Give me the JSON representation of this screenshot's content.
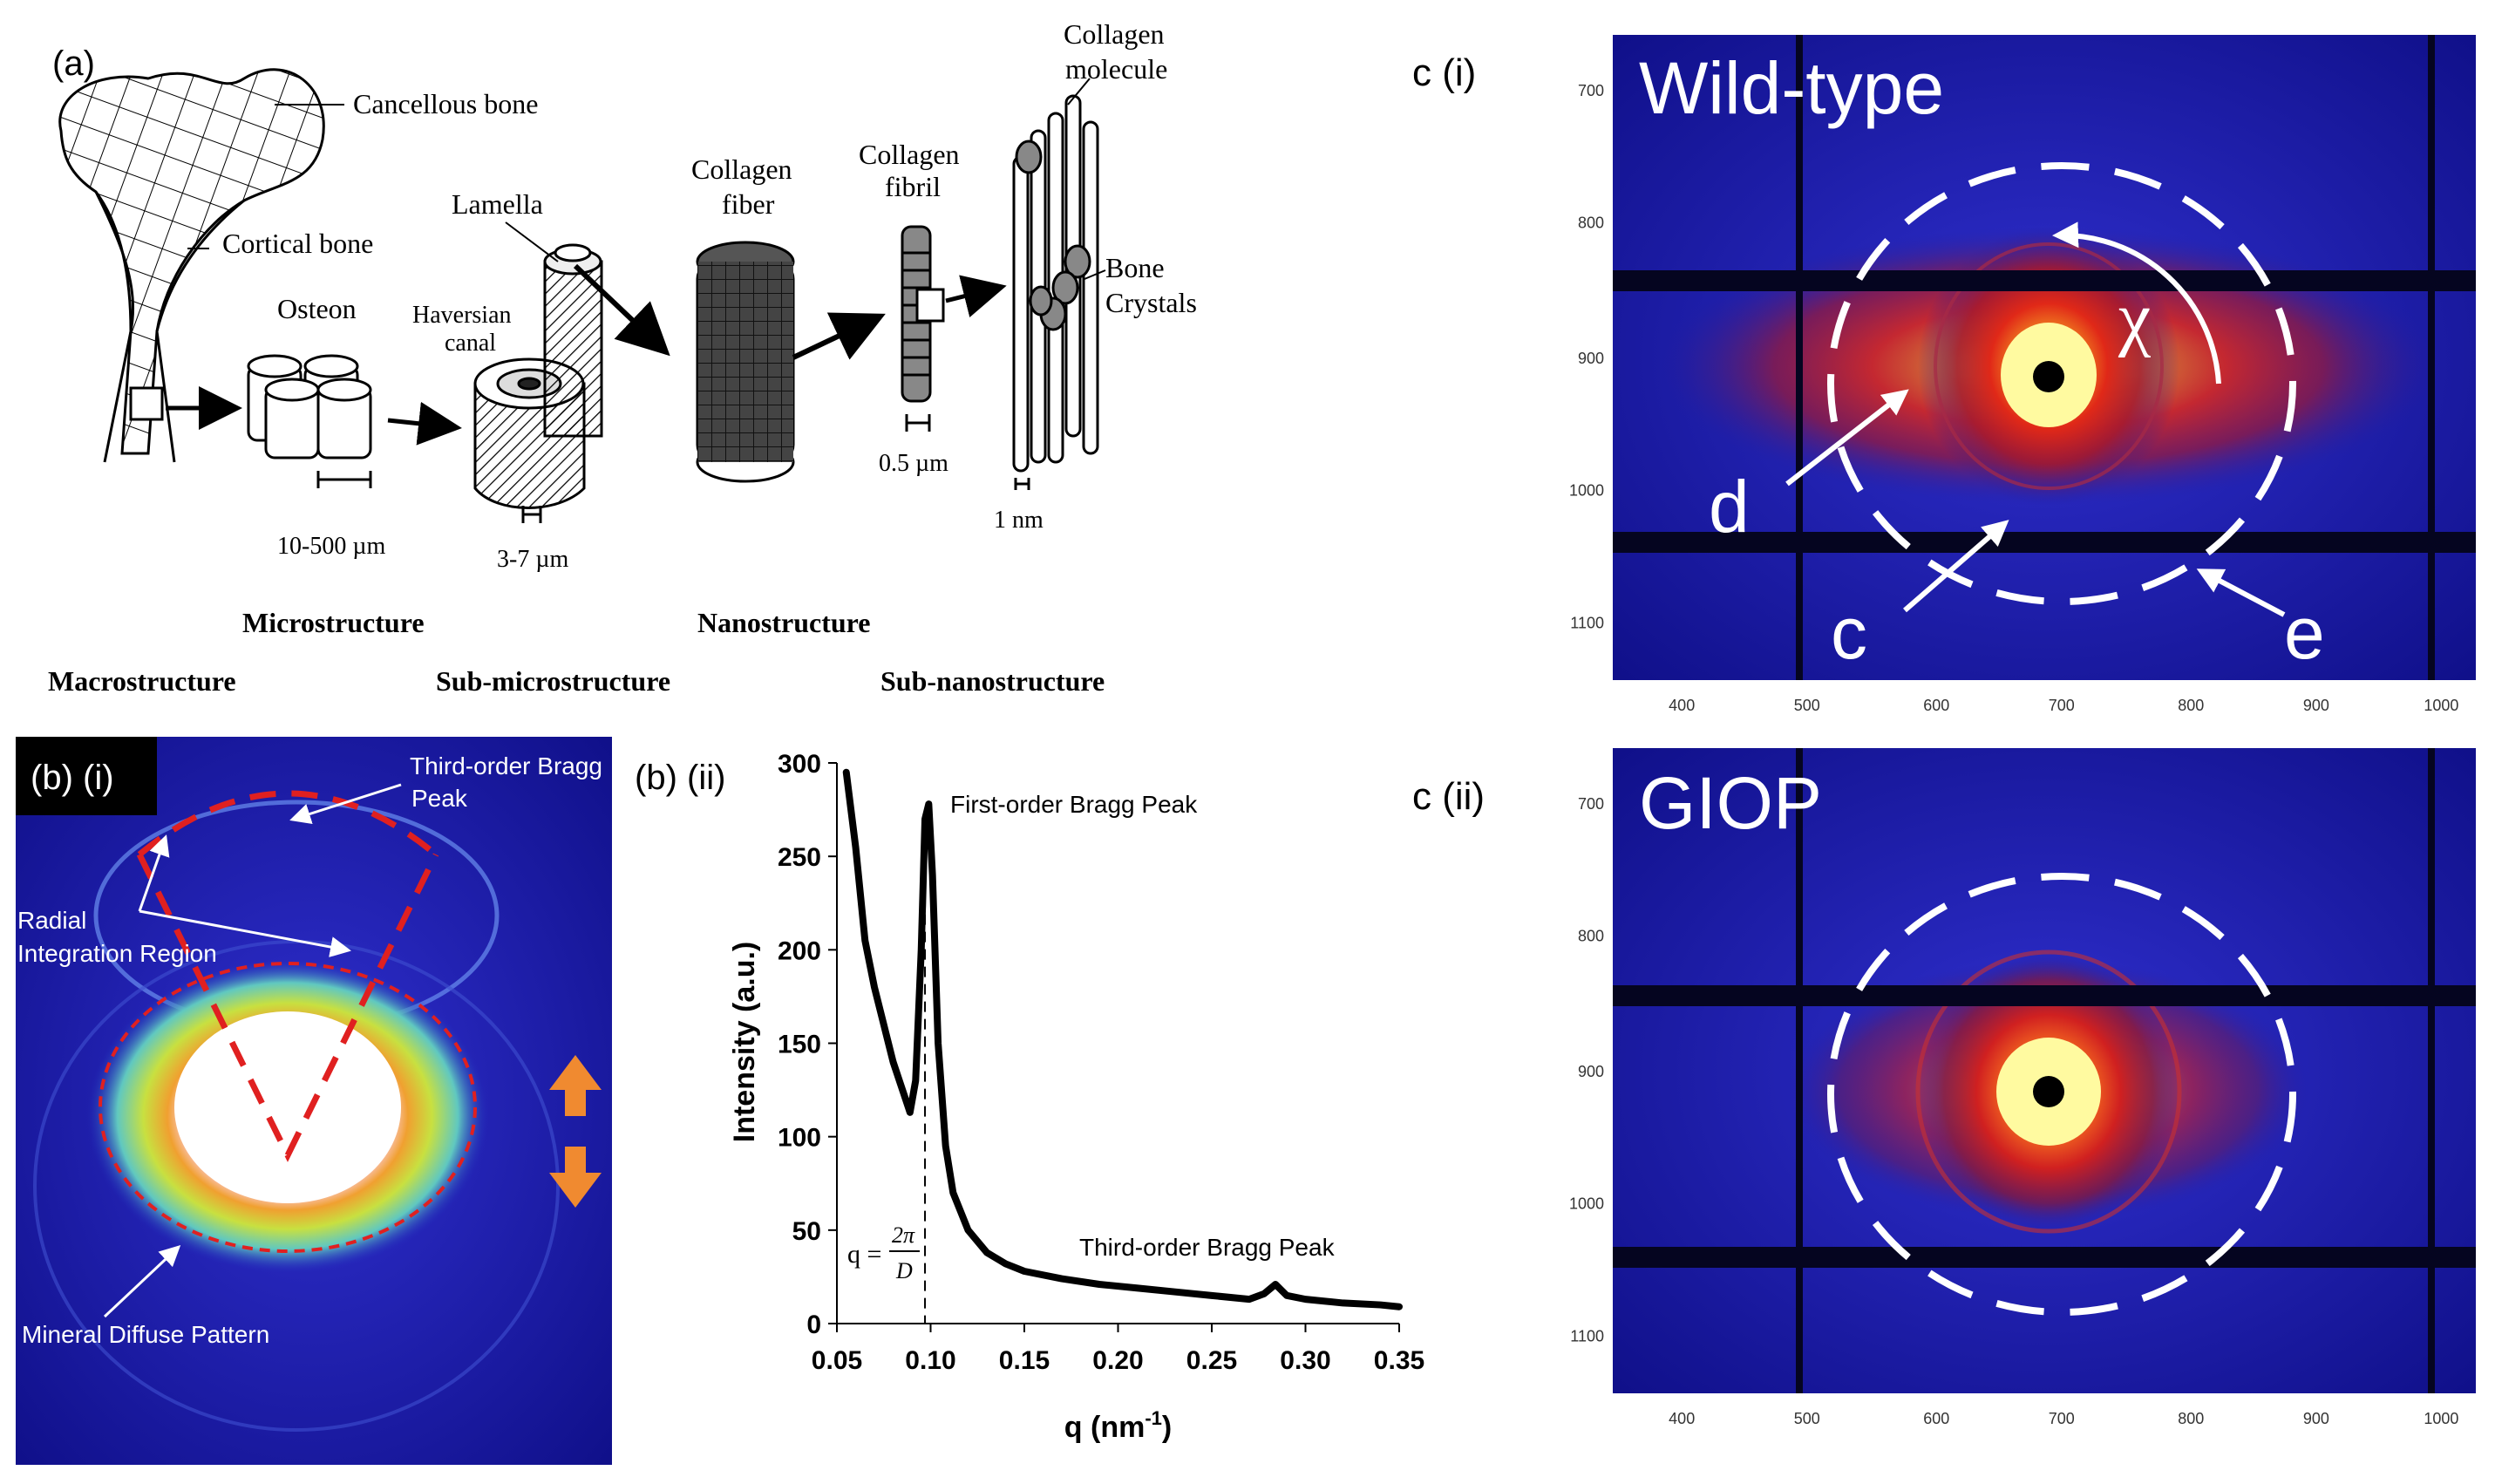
{
  "panel_a": {
    "label": "(a)",
    "parts": {
      "cancellous": "Cancellous bone",
      "cortical": "Cortical bone",
      "osteon": "Osteon",
      "haversian_line1": "Haversian",
      "haversian_line2": "canal",
      "lamella": "Lamella",
      "collagen_fiber_line1": "Collagen",
      "collagen_fiber_line2": "fiber",
      "collagen_fibril_line1": "Collagen",
      "collagen_fibril_line2": "fibril",
      "collagen_molecule_line1": "Collagen",
      "collagen_molecule_line2": "molecule",
      "bone_line1": "Bone",
      "bone_line2": "Crystals"
    },
    "scales": {
      "osteon": "10-500 µm",
      "lamella": "3-7 µm",
      "fibril": "0.5 µm",
      "molecule": "1 nm"
    },
    "levels": {
      "microstructure": "Microstructure",
      "nanostructure": "Nanostructure",
      "macrostructure": "Macrostructure",
      "sub_micro": "Sub-microstructure",
      "sub_nano": "Sub-nanostructure"
    }
  },
  "panel_b_i": {
    "label": "(b) (i)",
    "third_order_line1": "Third-order Bragg",
    "third_order_line2": "Peak",
    "radial_line1": "Radial",
    "radial_line2": "Integration Region",
    "mineral": "Mineral Diffuse Pattern"
  },
  "panel_b_ii": {
    "label": "(b) (ii)",
    "first_peak": "First-order Bragg Peak",
    "third_peak": "Third-order Bragg Peak",
    "formula_lhs": "q =",
    "formula_num": "2π",
    "formula_den": "D"
  },
  "chart_data": {
    "type": "line",
    "xlabel": "q (nm",
    "xlabel_sup": "-1",
    "xlabel_end": ")",
    "ylabel": "Intensity (a.u.)",
    "xlim": [
      0.05,
      0.35
    ],
    "ylim": [
      0,
      300
    ],
    "xticks": [
      "0.05",
      "0.10",
      "0.15",
      "0.20",
      "0.25",
      "0.30",
      "0.35"
    ],
    "yticks": [
      "0",
      "50",
      "100",
      "150",
      "200",
      "250",
      "300"
    ],
    "x": [
      0.055,
      0.06,
      0.065,
      0.07,
      0.075,
      0.08,
      0.085,
      0.089,
      0.092,
      0.095,
      0.097,
      0.099,
      0.101,
      0.104,
      0.108,
      0.112,
      0.12,
      0.13,
      0.14,
      0.15,
      0.17,
      0.19,
      0.21,
      0.23,
      0.25,
      0.27,
      0.278,
      0.284,
      0.29,
      0.3,
      0.32,
      0.34,
      0.35
    ],
    "y": [
      295,
      255,
      205,
      180,
      160,
      140,
      125,
      113,
      130,
      200,
      270,
      278,
      240,
      150,
      95,
      70,
      50,
      38,
      32,
      28,
      24,
      21,
      19,
      17,
      15,
      13,
      16,
      21,
      15,
      13,
      11,
      10,
      9
    ],
    "dashed_x": 0.097
  },
  "panel_c_i": {
    "label": "c (i)",
    "title": "Wild-type",
    "chi": "χ",
    "d": "d",
    "c": "c",
    "e": "e",
    "yticks": [
      "700",
      "800",
      "900",
      "1000",
      "1100"
    ],
    "xticks": [
      "400",
      "500",
      "600",
      "700",
      "800",
      "900",
      "1000"
    ]
  },
  "panel_c_ii": {
    "label": "c (ii)",
    "title": "GIOP",
    "yticks": [
      "700",
      "800",
      "900",
      "1000",
      "1100"
    ],
    "xticks": [
      "400",
      "500",
      "600",
      "700",
      "800",
      "900",
      "1000"
    ]
  },
  "colors": {
    "detector_blue": "#1a1aa8",
    "hot_red": "#e8301a",
    "dashed_red": "#e02020",
    "arrow_orange": "#f08a30",
    "curve": "#000000"
  }
}
